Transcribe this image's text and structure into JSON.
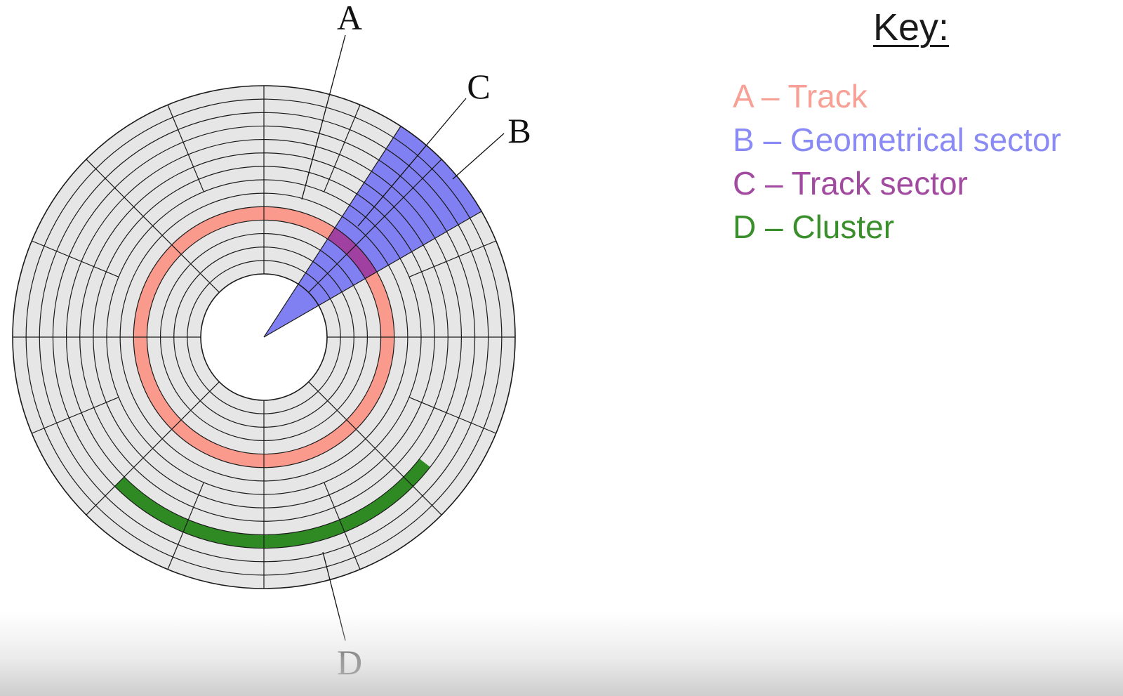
{
  "callouts": {
    "a": "A",
    "b": "B",
    "c": "C",
    "d": "D"
  },
  "key": {
    "title": "Key:",
    "items": [
      {
        "text": "A – Track",
        "color": "#f7a096"
      },
      {
        "text": "B – Geometrical sector",
        "color": "#8a8af5"
      },
      {
        "text": "C – Track sector",
        "color": "#a24aa0"
      },
      {
        "text": "D – Cluster",
        "color": "#3a8f2c"
      }
    ]
  },
  "disk": {
    "track_count": 14,
    "sector_count": 8,
    "colors": {
      "platter": "#e6e6e6",
      "lines": "#1a1a1a",
      "track": "#fa9a8c",
      "geometrical_sector": "#8080f2",
      "track_sector": "#a040a0",
      "cluster": "#2f8a24"
    }
  }
}
